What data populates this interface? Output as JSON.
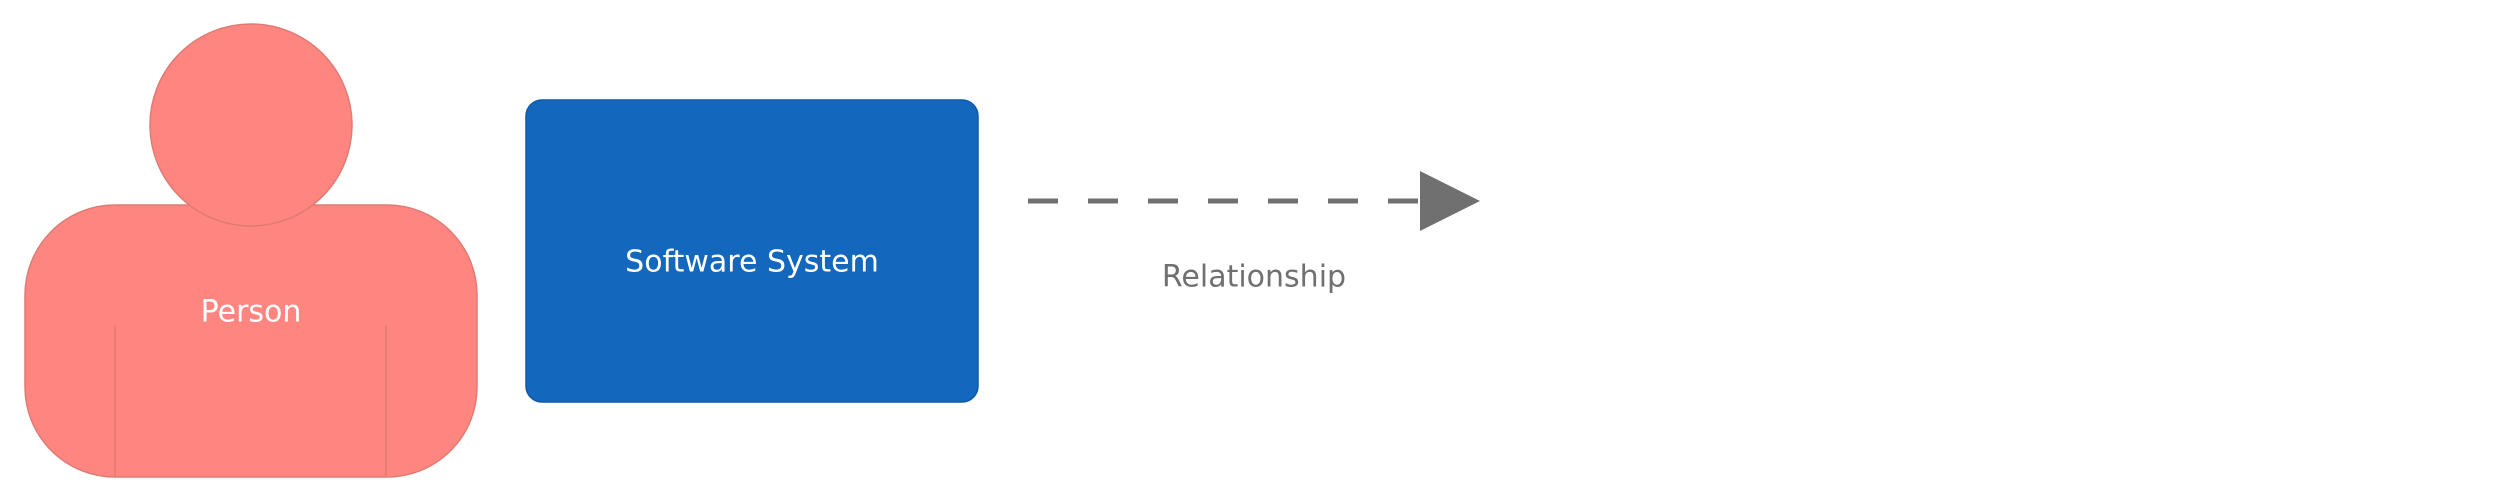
{
  "diagram": {
    "person": {
      "label": "Person",
      "color": "#FF8680",
      "stroke": "#E07A74",
      "text_color": "#FFFFFF"
    },
    "software_system": {
      "label": "Software System",
      "color": "#1368BD",
      "stroke": "#0F5AA6",
      "text_color": "#FFFFFF"
    },
    "relationship": {
      "label": "Relationship",
      "color": "#707070",
      "style": "dashed",
      "text_color": "#707070"
    }
  }
}
